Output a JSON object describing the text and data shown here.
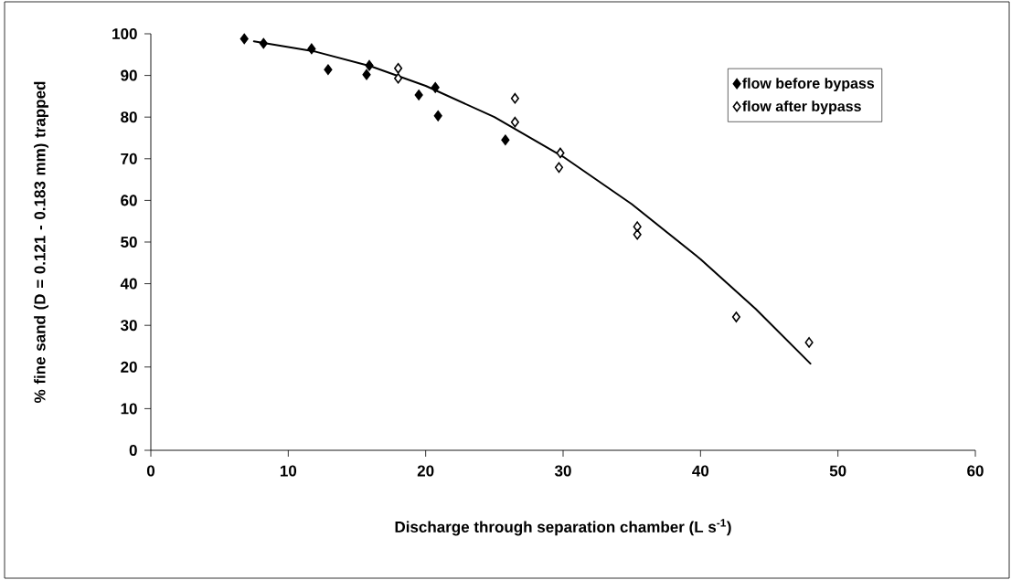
{
  "chart_data": {
    "type": "scatter",
    "xlabel": "Discharge through separation chamber (L s$^{-1}$)",
    "ylabel": "% fine sand (D = 0.121 - 0.183 mm) trapped",
    "xlim": [
      0,
      60
    ],
    "xticks": [
      0,
      10,
      20,
      30,
      40,
      50,
      60
    ],
    "ylim": [
      0,
      100
    ],
    "yticks": [
      0,
      10,
      20,
      30,
      40,
      50,
      60,
      70,
      80,
      90,
      100
    ],
    "grid": false,
    "legend": "top right",
    "marker": "diamond",
    "series": [
      {
        "name": "flow before bypass",
        "color": "#000000",
        "x": [
          6.8,
          8.2,
          11.7,
          12.9,
          15.9,
          15.7,
          19.5,
          20.7,
          20.9,
          25.8
        ],
        "values": [
          98.8,
          97.7,
          96.4,
          91.4,
          92.4,
          90.2,
          85.3,
          87.1,
          80.3,
          74.5
        ]
      },
      {
        "name": "flow after bypass",
        "color": "#000000",
        "x": [
          18.0,
          18.0,
          26.5,
          26.5,
          29.8,
          29.7,
          35.4,
          35.4,
          42.6,
          47.9
        ],
        "values": [
          91.7,
          89.3,
          84.5,
          78.8,
          71.4,
          67.9,
          53.7,
          51.8,
          32.0,
          25.9
        ]
      },
      {
        "type": "line",
        "color": "#000000",
        "marker": "none",
        "x": [
          7.5,
          12,
          16,
          20,
          25,
          30,
          35,
          40,
          44,
          48
        ],
        "values": [
          98.2,
          95.7,
          92.2,
          87.5,
          80.0,
          70.5,
          59.1,
          45.9,
          34.0,
          20.8
        ]
      }
    ]
  }
}
